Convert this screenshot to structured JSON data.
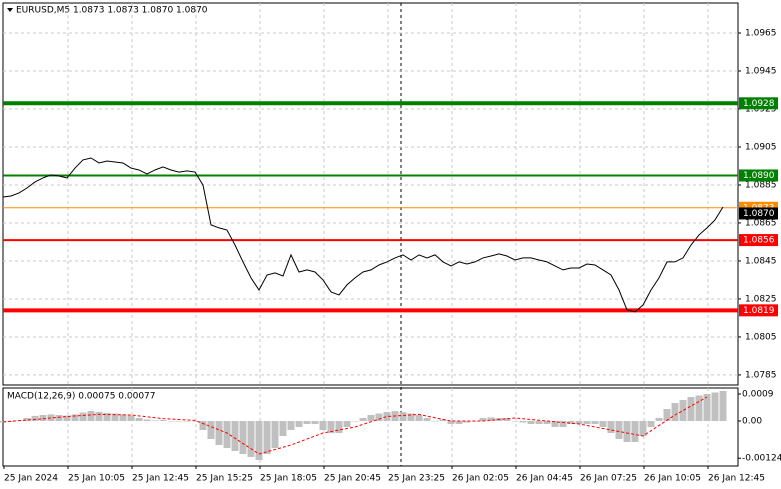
{
  "chart_data": {
    "type": "line",
    "title": "EURUSD,M5  1.0873 1.0873 1.0870 1.0870",
    "x_labels": [
      "25 Jan 2024",
      "25 Jan 10:05",
      "25 Jan 12:45",
      "25 Jan 15:25",
      "25 Jan 18:05",
      "25 Jan 20:45",
      "25 Jan 23:25",
      "26 Jan 02:05",
      "26 Jan 04:45",
      "26 Jan 07:25",
      "26 Jan 10:05",
      "26 Jan 12:45"
    ],
    "ylim": [
      1.07797,
      1.09808
    ],
    "yticks": [
      1.0965,
      1.0945,
      1.0925,
      1.0905,
      1.0885,
      1.0865,
      1.0845,
      1.0825,
      1.0805,
      1.0785
    ],
    "grid": true,
    "series": [
      {
        "color": "#000000",
        "values": [
          1.08787,
          1.08792,
          1.08808,
          1.08834,
          1.08866,
          1.08887,
          1.08903,
          1.08897,
          1.08887,
          1.08939,
          1.08982,
          1.08992,
          1.08966,
          1.08976,
          1.08971,
          1.08966,
          1.08939,
          1.08929,
          1.08908,
          1.08929,
          1.08945,
          1.08929,
          1.08918,
          1.08924,
          1.08918,
          1.0885,
          1.0864,
          1.08624,
          1.08613,
          1.08534,
          1.08445,
          1.08361,
          1.08297,
          1.08376,
          1.08387,
          1.08371,
          1.08482,
          1.08392,
          1.08403,
          1.08392,
          1.0835,
          1.08287,
          1.08271,
          1.08324,
          1.08361,
          1.08392,
          1.08403,
          1.08429,
          1.08445,
          1.08466,
          1.08482,
          1.08455,
          1.08482,
          1.08466,
          1.08482,
          1.08445,
          1.08424,
          1.08445,
          1.08434,
          1.08445,
          1.08466,
          1.08476,
          1.08487,
          1.08476,
          1.08455,
          1.08466,
          1.08466,
          1.08455,
          1.08445,
          1.08424,
          1.08403,
          1.08413,
          1.08413,
          1.08434,
          1.08429,
          1.08403,
          1.08376,
          1.08297,
          1.08192,
          1.08182,
          1.08218,
          1.08297,
          1.08361,
          1.08445,
          1.08445,
          1.08466,
          1.08534,
          1.08587,
          1.08624,
          1.08666,
          1.08734
        ]
      }
    ],
    "levels": [
      {
        "value": 1.0928,
        "label": "1.0928",
        "color": "#008000",
        "width": 4
      },
      {
        "value": 1.089,
        "label": "1.0890",
        "color": "#008000",
        "width": 2
      },
      {
        "value": 1.0873,
        "label": "1.0873",
        "color": "#ff8c00",
        "width": 1
      },
      {
        "value": 1.0856,
        "label": "1.0856",
        "color": "#ff0000",
        "width": 2
      },
      {
        "value": 1.0819,
        "label": "1.0819",
        "color": "#ff0000",
        "width": 4
      }
    ],
    "current_price": {
      "value": 1.087,
      "label": "1.0870",
      "color": "#000000"
    },
    "macd": {
      "title": "MACD(12,26,9) 0.00075 0.00077",
      "ylim": [
        -0.0015,
        0.0011
      ],
      "yticks": [
        0.0009,
        {
          "value": 0,
          "label": "0.00"
        },
        -0.00124
      ],
      "histogram": {
        "color": "#c0c0c0",
        "values": [
          -5e-05,
          -3e-05,
          2e-05,
          0.0001,
          0.00017,
          0.0002,
          0.00022,
          0.0002,
          0.00018,
          0.00022,
          0.00028,
          0.00033,
          0.0003,
          0.00027,
          0.00025,
          0.00022,
          0.00018,
          0.0001,
          5e-05,
          2e-05,
          3e-05,
          0,
          0,
          0,
          0,
          -0.0003,
          -0.0006,
          -0.0008,
          -0.0009,
          -0.001,
          -0.0011,
          -0.0012,
          -0.0013,
          -0.0011,
          -0.0009,
          -0.0005,
          -0.0003,
          -0.0002,
          -0.0001,
          -0.0001,
          -0.0003,
          -0.0004,
          -0.0004,
          -0.0002,
          0,
          0.0001,
          0.0002,
          0.00025,
          0.0003,
          0.00033,
          0.0003,
          0.00025,
          0.0002,
          0.0001,
          0,
          5e-05,
          -0.0001,
          -0.0001,
          -5e-05,
          0,
          0.0001,
          0.00012,
          0.0001,
          0.0001,
          0,
          -5e-05,
          -0.0001,
          -0.0001,
          -0.0001,
          -0.0002,
          -0.0002,
          -0.0001,
          -0.0001,
          -0.0001,
          -0.0001,
          -0.0002,
          -0.0004,
          -0.0006,
          -0.0007,
          -0.0007,
          -0.0005,
          -0.0002,
          0.0001,
          0.0004,
          0.0006,
          0.0007,
          0.0008,
          0.00085,
          0.0009,
          0.00095,
          0.001
        ]
      },
      "signal": {
        "color": "#ff0000",
        "values": [
          -3e-05,
          5e-05,
          0.00015,
          0.00022,
          0.0002,
          8e-05,
          2e-05,
          -0.0004,
          -0.0011,
          -0.0008,
          -0.0004,
          -0.0002,
          0.00015,
          0.00022,
          0,
          0,
          0.0001,
          0,
          -0.0001,
          -0.0003,
          -0.0005,
          0.0002,
          0.0008
        ]
      }
    }
  }
}
